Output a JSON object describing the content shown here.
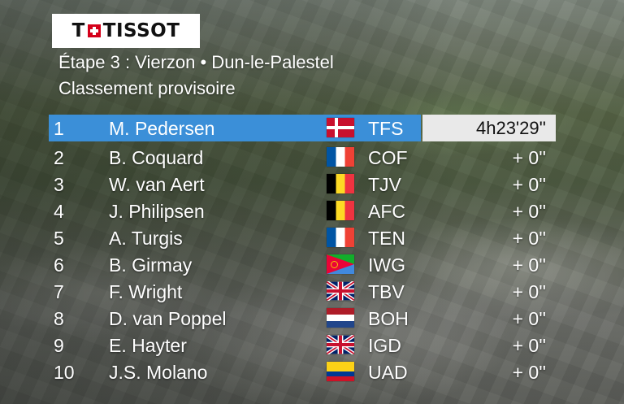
{
  "logo": {
    "text_left": "T",
    "text_right": "TISSOT"
  },
  "stage_title": "Étape 3 : Vierzon • Dun-le-Palestel",
  "subtitle": "Classement provisoire",
  "colors": {
    "leader_bar": "#3b8fd8",
    "leader_time_bg": "#e9e9e9",
    "brand_red": "#d4001a"
  },
  "standings": [
    {
      "pos": "1",
      "name": "M. Pedersen",
      "flag": "denmark-flag-icon",
      "team": "TFS",
      "time": "4h23'29''"
    },
    {
      "pos": "2",
      "name": "B. Coquard",
      "flag": "france-flag-icon",
      "team": "COF",
      "time": "+ 0''"
    },
    {
      "pos": "3",
      "name": "W. van Aert",
      "flag": "belgium-flag-icon",
      "team": "TJV",
      "time": "+ 0''"
    },
    {
      "pos": "4",
      "name": "J. Philipsen",
      "flag": "belgium-flag-icon",
      "team": "AFC",
      "time": "+ 0''"
    },
    {
      "pos": "5",
      "name": "A. Turgis",
      "flag": "france-flag-icon",
      "team": "TEN",
      "time": "+ 0''"
    },
    {
      "pos": "6",
      "name": "B. Girmay",
      "flag": "eritrea-flag-icon",
      "team": "IWG",
      "time": "+ 0''"
    },
    {
      "pos": "7",
      "name": "F. Wright",
      "flag": "united-kingdom-flag-icon",
      "team": "TBV",
      "time": "+ 0''"
    },
    {
      "pos": "8",
      "name": "D. van Poppel",
      "flag": "netherlands-flag-icon",
      "team": "BOH",
      "time": "+ 0''"
    },
    {
      "pos": "9",
      "name": "E. Hayter",
      "flag": "united-kingdom-flag-icon",
      "team": "IGD",
      "time": "+ 0''"
    },
    {
      "pos": "10",
      "name": "J.S. Molano",
      "flag": "colombia-flag-icon",
      "team": "UAD",
      "time": "+ 0''"
    }
  ]
}
